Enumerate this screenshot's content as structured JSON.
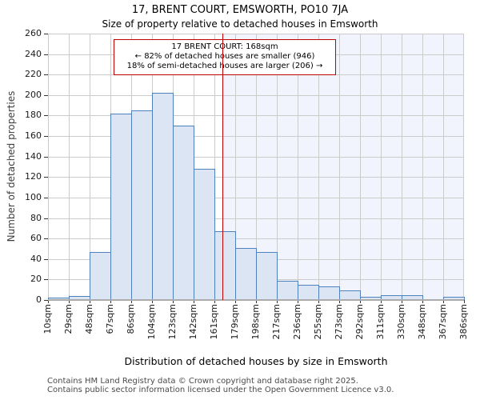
{
  "title": "17, BRENT COURT, EMSWORTH, PO10 7JA",
  "subtitle": "Size of property relative to detached houses in Emsworth",
  "annotation": {
    "line1": "17 BRENT COURT: 168sqm",
    "line2": "← 82% of detached houses are smaller (946)",
    "line3": "18% of semi-detached houses are larger (206) →"
  },
  "chart_data": {
    "type": "bar",
    "title": "17, BRENT COURT, EMSWORTH, PO10 7JA",
    "subtitle": "Size of property relative to detached houses in Emsworth",
    "xlabel": "Distribution of detached houses by size in Emsworth",
    "ylabel": "Number of detached properties",
    "categories": [
      "10sqm",
      "29sqm",
      "48sqm",
      "67sqm",
      "86sqm",
      "104sqm",
      "123sqm",
      "142sqm",
      "161sqm",
      "179sqm",
      "198sqm",
      "217sqm",
      "236sqm",
      "255sqm",
      "273sqm",
      "292sqm",
      "311sqm",
      "330sqm",
      "348sqm",
      "367sqm",
      "386sqm"
    ],
    "bin_edges_sqm": [
      10,
      29,
      48,
      67,
      86,
      104,
      123,
      142,
      161,
      179,
      198,
      217,
      236,
      255,
      273,
      292,
      311,
      330,
      348,
      367,
      386
    ],
    "values": [
      2,
      4,
      47,
      182,
      185,
      202,
      170,
      128,
      67,
      51,
      47,
      19,
      15,
      13,
      9,
      3,
      5,
      5,
      1,
      3
    ],
    "ylim": [
      0,
      260
    ],
    "ytick_step": 20,
    "marker_value_sqm": 168,
    "grid": true,
    "legend": "none"
  },
  "footer": {
    "line1": "Contains HM Land Registry data © Crown copyright and database right 2025.",
    "line2": "Contains public sector information licensed under the Open Government Licence v3.0."
  },
  "colors": {
    "bar_fill": "#dbe5f4",
    "bar_edge": "#4f81bd",
    "marker_red": "#c00000",
    "shade_right": "#f1f4fc",
    "gridline": "#cbcbcb",
    "axis": "#ababab"
  }
}
